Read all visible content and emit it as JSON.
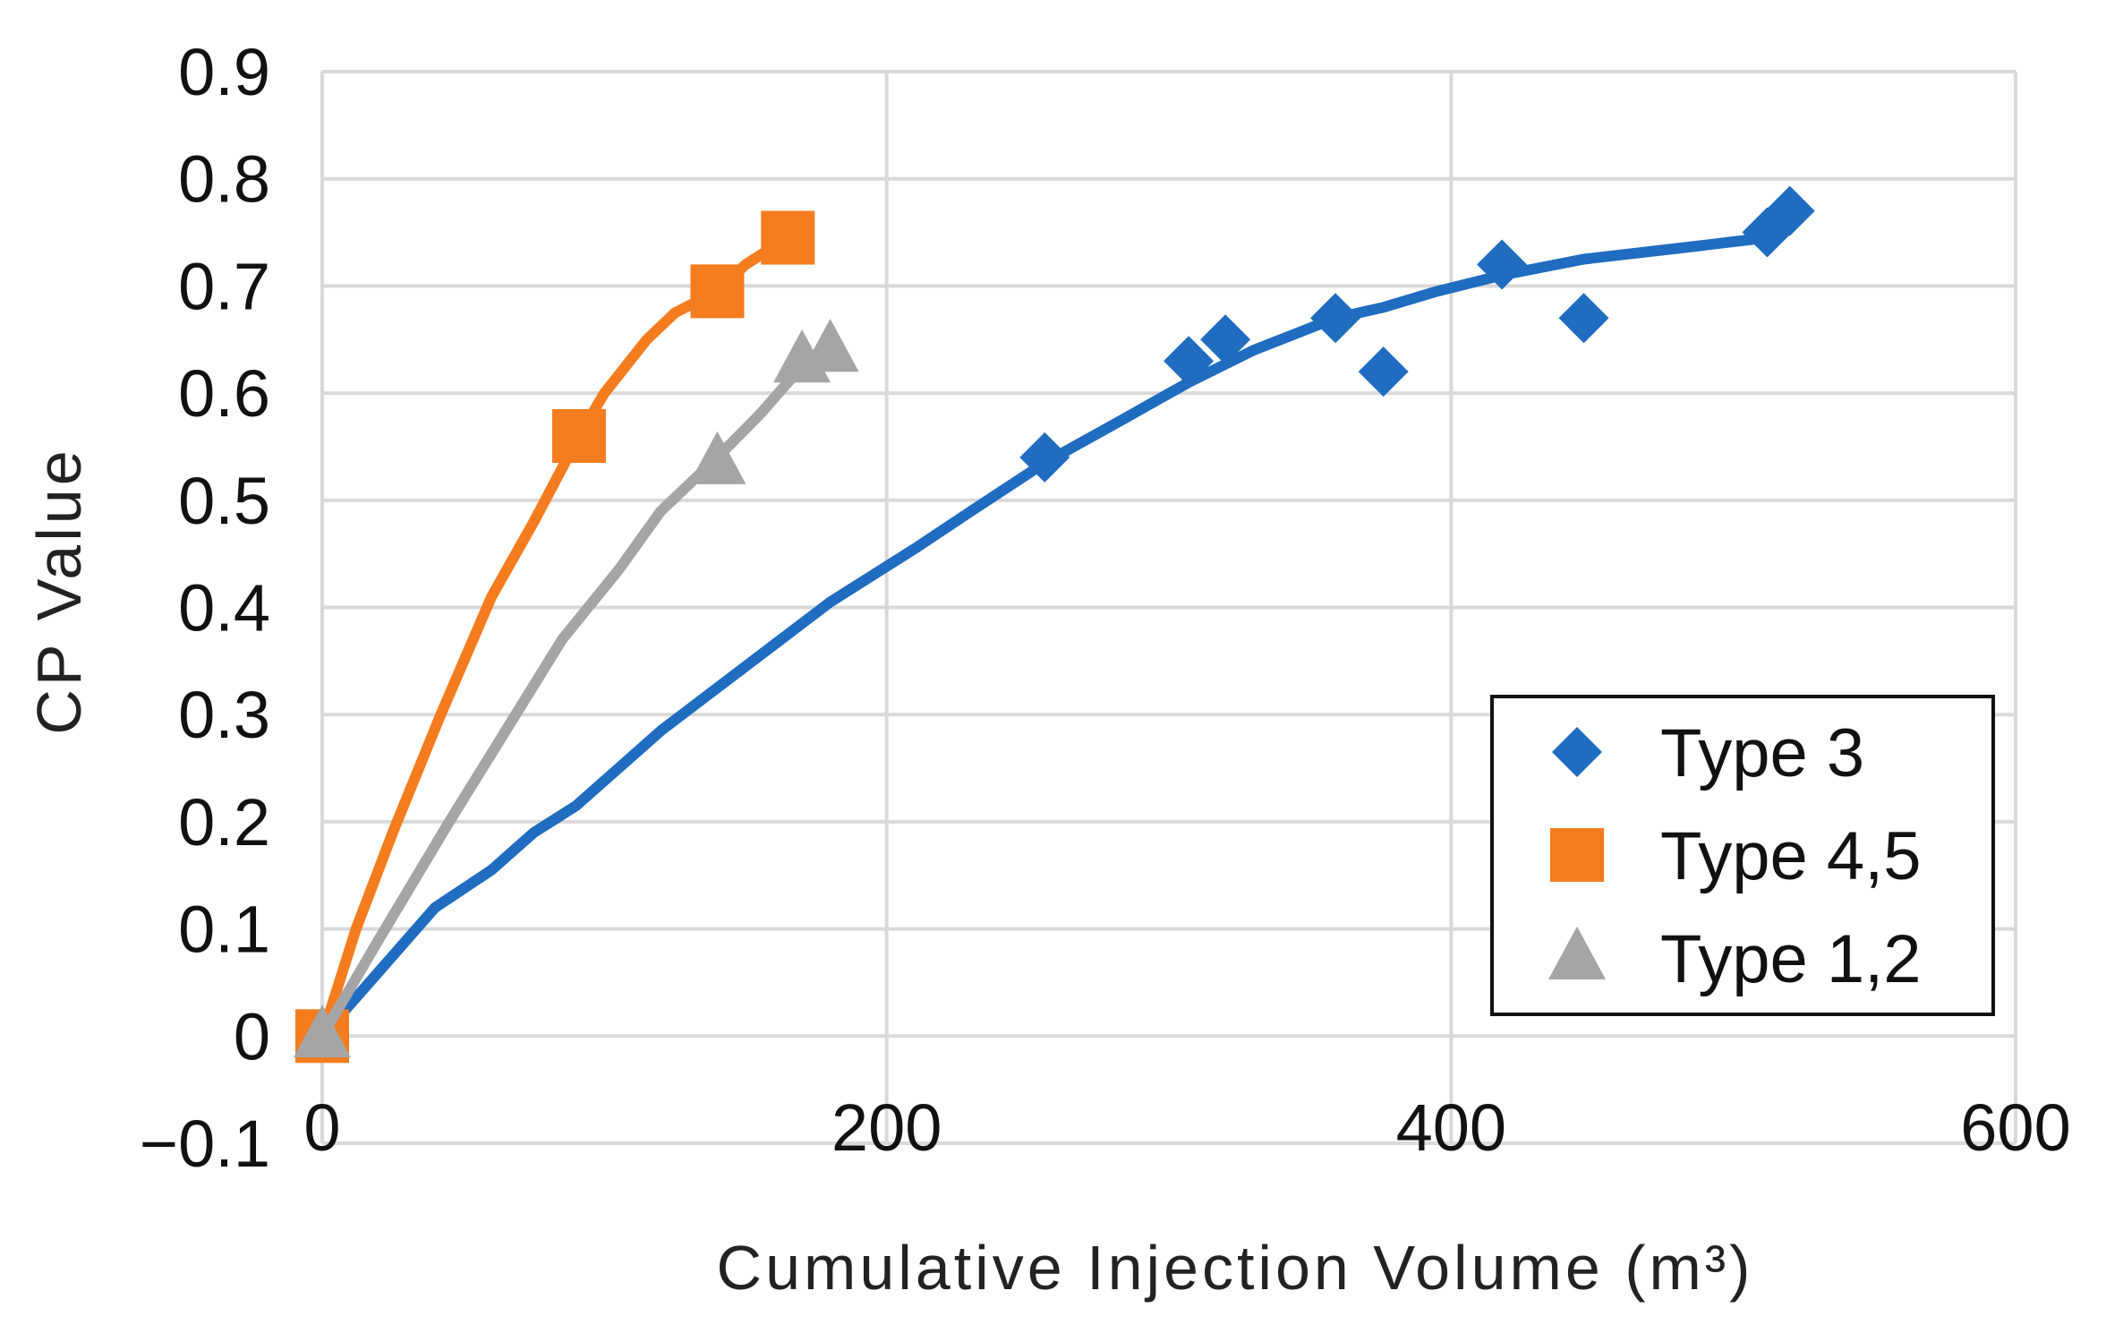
{
  "chart_data": {
    "type": "scatter",
    "title": "",
    "xlabel": "Cumulative Injection Volume (m³)",
    "ylabel": "CP Value",
    "xlim": [
      0,
      600
    ],
    "ylim": [
      -0.1,
      0.9
    ],
    "x_ticks": [
      0,
      200,
      400,
      600
    ],
    "x_tick_labels": [
      "0",
      "200",
      "400",
      "600"
    ],
    "y_ticks": [
      -0.1,
      0,
      0.1,
      0.2,
      0.3,
      0.4,
      0.5,
      0.6,
      0.7,
      0.8,
      0.9
    ],
    "y_tick_labels": [
      "−0.1",
      "0",
      "0.1",
      "0.2",
      "0.3",
      "0.4",
      "0.5",
      "0.6",
      "0.7",
      "0.8",
      "0.9"
    ],
    "grid": true,
    "legend_position": "bottom-right",
    "series": [
      {
        "name": "Type 3",
        "marker": "diamond",
        "color": "#1f6cc0",
        "points": [
          [
            0,
            0
          ],
          [
            256,
            0.54
          ],
          [
            307,
            0.63
          ],
          [
            320,
            0.65
          ],
          [
            359,
            0.67
          ],
          [
            376,
            0.62
          ],
          [
            418,
            0.72
          ],
          [
            447,
            0.67
          ],
          [
            512,
            0.75
          ],
          [
            520,
            0.77
          ]
        ],
        "trend": [
          [
            0,
            0
          ],
          [
            20,
            0.06
          ],
          [
            40,
            0.12
          ],
          [
            60,
            0.155
          ],
          [
            75,
            0.19
          ],
          [
            90,
            0.215
          ],
          [
            120,
            0.285
          ],
          [
            150,
            0.345
          ],
          [
            180,
            0.405
          ],
          [
            210,
            0.455
          ],
          [
            230,
            0.49
          ],
          [
            256,
            0.535
          ],
          [
            280,
            0.57
          ],
          [
            307,
            0.61
          ],
          [
            330,
            0.64
          ],
          [
            359,
            0.67
          ],
          [
            376,
            0.68
          ],
          [
            395,
            0.695
          ],
          [
            418,
            0.71
          ],
          [
            447,
            0.725
          ],
          [
            480,
            0.735
          ],
          [
            512,
            0.745
          ]
        ]
      },
      {
        "name": "Type 4,5",
        "marker": "square",
        "color": "#f47c1e",
        "points": [
          [
            0,
            0
          ],
          [
            91,
            0.56
          ],
          [
            140,
            0.695
          ],
          [
            165,
            0.745
          ]
        ],
        "trend": [
          [
            0,
            0
          ],
          [
            12,
            0.1
          ],
          [
            25,
            0.19
          ],
          [
            42,
            0.3
          ],
          [
            60,
            0.41
          ],
          [
            75,
            0.48
          ],
          [
            91,
            0.56
          ],
          [
            100,
            0.6
          ],
          [
            115,
            0.65
          ],
          [
            125,
            0.675
          ],
          [
            140,
            0.695
          ],
          [
            150,
            0.72
          ],
          [
            165,
            0.745
          ]
        ]
      },
      {
        "name": "Type 1,2",
        "marker": "triangle",
        "color": "#a5a5a5",
        "points": [
          [
            0,
            0
          ],
          [
            140,
            0.535
          ],
          [
            170,
            0.63
          ],
          [
            180,
            0.64
          ]
        ],
        "trend": [
          [
            0,
            0
          ],
          [
            20,
            0.09
          ],
          [
            45,
            0.2
          ],
          [
            65,
            0.285
          ],
          [
            85,
            0.37
          ],
          [
            105,
            0.435
          ],
          [
            120,
            0.49
          ],
          [
            140,
            0.54
          ],
          [
            155,
            0.58
          ],
          [
            170,
            0.625
          ],
          [
            180,
            0.64
          ]
        ]
      }
    ]
  }
}
